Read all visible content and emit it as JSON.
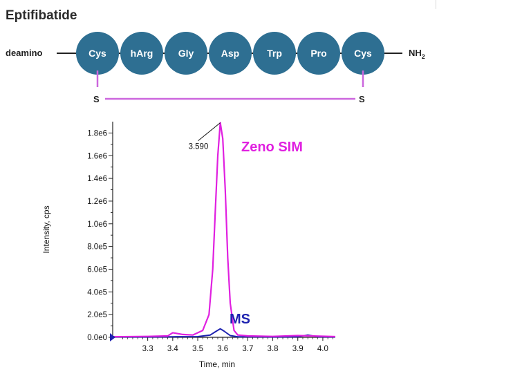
{
  "title": "Eptifibatide",
  "peptide": {
    "n_terminus": "deamino",
    "c_terminus": "NH",
    "c_terminus_subscript": "2",
    "residues": [
      "Cys",
      "hArg",
      "Gly",
      "Asp",
      "Trp",
      "Pro",
      "Cys"
    ],
    "residue_color": "#2e6f92",
    "disulfide_color": "#cc66dd",
    "sulfur_label_left": "S",
    "sulfur_label_right": "S"
  },
  "chart_data": {
    "type": "line",
    "xlabel": "Time, min",
    "ylabel": "Intensity, cps",
    "xlim": [
      3.16,
      4.05
    ],
    "ylim": [
      0,
      1900000.0
    ],
    "x_ticks": [
      3.3,
      3.4,
      3.5,
      3.6,
      3.7,
      3.8,
      3.9,
      4.0
    ],
    "x_tick_labels": [
      "3.3",
      "3.4",
      "3.5",
      "3.6",
      "3.7",
      "3.8",
      "3.9",
      "4.0"
    ],
    "y_ticks": [
      0,
      200000,
      400000,
      600000,
      800000,
      1000000,
      1200000,
      1400000,
      1600000,
      1800000
    ],
    "y_tick_labels": [
      "0.0e0",
      "2.0e5",
      "4.0e5",
      "6.0e5",
      "8.0e5",
      "1.0e6",
      "1.2e6",
      "1.4e6",
      "1.6e6",
      "1.8e6"
    ],
    "series": [
      {
        "name": "Zeno SIM",
        "color": "#e020e0",
        "x": [
          3.16,
          3.3,
          3.38,
          3.4,
          3.44,
          3.48,
          3.52,
          3.545,
          3.56,
          3.57,
          3.58,
          3.59,
          3.6,
          3.61,
          3.62,
          3.63,
          3.645,
          3.66,
          3.7,
          3.8,
          3.9,
          4.05
        ],
        "y": [
          5000,
          8000,
          12000,
          40000,
          25000,
          20000,
          60000,
          200000,
          600000,
          1100000,
          1600000,
          1890000,
          1750000,
          1300000,
          700000,
          300000,
          60000,
          20000,
          12000,
          8000,
          15000,
          6000
        ]
      },
      {
        "name": "MS",
        "color": "#1e22b0",
        "x": [
          3.16,
          3.3,
          3.4,
          3.5,
          3.55,
          3.575,
          3.59,
          3.605,
          3.63,
          3.66,
          3.7,
          3.8,
          3.9,
          3.94,
          3.98,
          4.05
        ],
        "y": [
          3000,
          3000,
          5000,
          6000,
          20000,
          55000,
          75000,
          55000,
          15000,
          5000,
          4000,
          3000,
          4000,
          20000,
          5000,
          3000
        ]
      }
    ],
    "annotations": [
      {
        "label": "3.590",
        "x": 3.59,
        "y": 1890000
      }
    ]
  }
}
